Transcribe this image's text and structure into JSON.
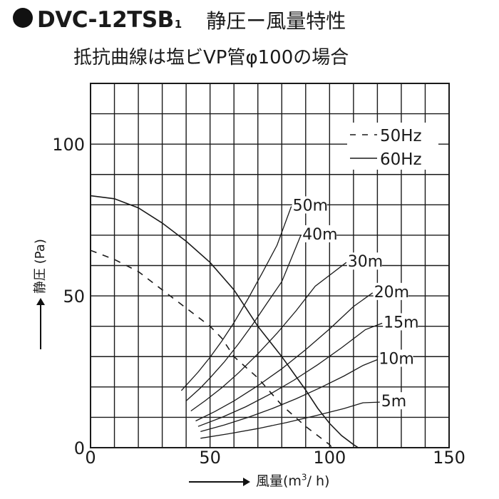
{
  "header": {
    "model": "DVC-12TSB",
    "model_sub": "1",
    "description": "静圧ー風量特性",
    "subtitle": "抵抗曲線は塩ビVP管φ100の場合"
  },
  "chart_data": {
    "type": "line",
    "title": "DVC-12TSB1 静圧ー風量特性",
    "subtitle": "抵抗曲線は塩ビVP管φ100の場合",
    "xlabel": "風量(m3/ h)",
    "ylabel": "静圧 (Pa)",
    "xlabel_prefix": "風量(m",
    "xlabel_sup": "3",
    "xlabel_suffix": "/ h)",
    "xlim": [
      0,
      150
    ],
    "ylim": [
      0,
      120
    ],
    "xticks": [
      0,
      50,
      100,
      150
    ],
    "yticks": [
      0,
      50,
      100
    ],
    "grid": true,
    "legend_position": "top-right",
    "legend": [
      {
        "label": "50Hz",
        "style": "dashed",
        "symbol": "- -"
      },
      {
        "label": "60Hz",
        "style": "solid",
        "symbol": "—"
      }
    ],
    "series": [
      {
        "name": "50Hz",
        "style": "dashed",
        "x": [
          0,
          10,
          20,
          30,
          40,
          50,
          55,
          60,
          70,
          80,
          90,
          100,
          101
        ],
        "y": [
          65,
          62,
          58,
          52,
          46,
          40,
          36,
          30,
          23,
          14,
          7,
          1,
          0
        ]
      },
      {
        "name": "60Hz",
        "style": "solid",
        "x": [
          0,
          10,
          20,
          30,
          40,
          50,
          60,
          65,
          70,
          80,
          90,
          95,
          100,
          105,
          110,
          112
        ],
        "y": [
          83,
          82,
          79,
          74,
          68,
          61,
          52,
          46,
          40,
          30,
          19,
          13,
          8,
          4,
          1,
          0
        ]
      }
    ],
    "resistance_curves": [
      {
        "label": "50m",
        "x": [
          38,
          45,
          50,
          55,
          60,
          66,
          72,
          78,
          84
        ],
        "y": [
          18.8,
          24.9,
          29.8,
          35.2,
          41.2,
          49.2,
          57.8,
          66.7,
          79.5
        ]
      },
      {
        "label": "40m",
        "x": [
          40,
          46,
          50,
          56,
          62,
          68,
          74,
          80,
          88
        ],
        "y": [
          15.4,
          19.7,
          23.0,
          28.3,
          34.3,
          40.8,
          47.8,
          54.7,
          70.0
        ]
      },
      {
        "label": "30m",
        "x": [
          42,
          48,
          55,
          62,
          70,
          78,
          86,
          94,
          107
        ],
        "y": [
          12.1,
          15.5,
          19.8,
          24.7,
          30.9,
          37.7,
          45.1,
          53.2,
          61.0
        ]
      },
      {
        "label": "20m",
        "x": [
          44,
          52,
          60,
          70,
          80,
          90,
          100,
          110,
          118
        ],
        "y": [
          8.8,
          11.9,
          15.4,
          20.4,
          26.0,
          32.3,
          39.1,
          46.5,
          51.0
        ]
      },
      {
        "label": "15m",
        "x": [
          45,
          55,
          65,
          75,
          85,
          95,
          105,
          115,
          122
        ],
        "y": [
          7.0,
          10.0,
          13.5,
          17.6,
          22.2,
          27.3,
          32.9,
          38.9,
          41.0
        ]
      },
      {
        "label": "10m",
        "x": [
          46,
          56,
          66,
          76,
          86,
          96,
          106,
          114,
          120
        ],
        "y": [
          5.3,
          7.5,
          10.0,
          12.9,
          16.1,
          19.7,
          23.6,
          27.1,
          29.0
        ]
      },
      {
        "label": "5m",
        "x": [
          46,
          58,
          70,
          82,
          94,
          106,
          114,
          121
        ],
        "y": [
          3.1,
          4.6,
          6.3,
          8.3,
          10.5,
          12.9,
          14.8,
          15.0
        ]
      }
    ]
  },
  "colors": {
    "line": "#1a1a1a",
    "grid": "#1a1a1a",
    "background": "#ffffff"
  }
}
